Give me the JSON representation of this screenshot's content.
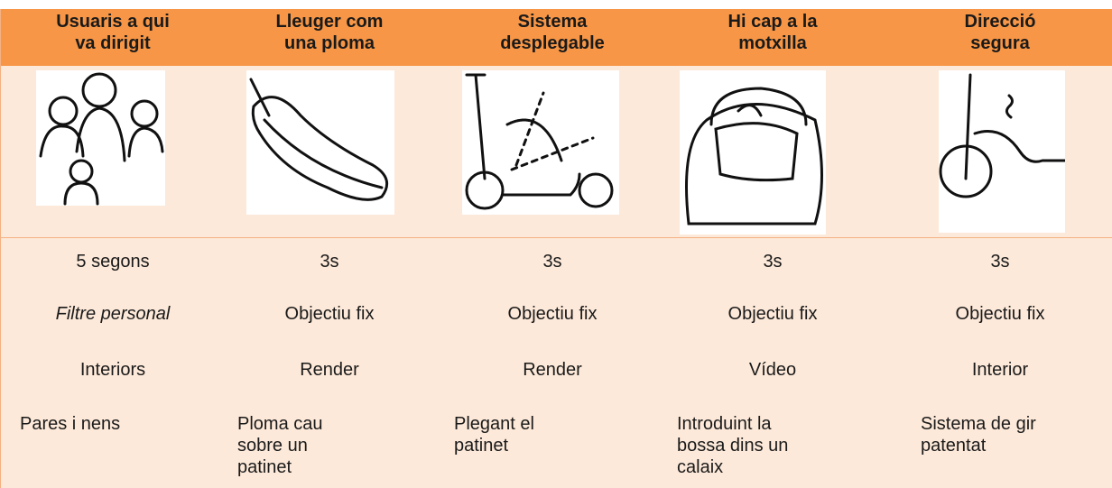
{
  "table": {
    "header": [
      [
        "Usuaris a qui",
        "va dirigit"
      ],
      [
        "Lleuger com",
        "una ploma"
      ],
      [
        "Sistema",
        "desplegable"
      ],
      [
        "Hi cap a la",
        "motxilla"
      ],
      [
        "Direcció",
        "segura"
      ]
    ],
    "rows": [
      [
        "5 segons",
        "3s",
        "3s",
        "3s",
        "3s"
      ],
      [
        "Filtre personal",
        "Objectiu fix",
        "Objectiu fix",
        "Objectiu fix",
        "Objectiu fix"
      ],
      [
        "Interiors",
        "Render",
        "Render",
        "Vídeo",
        "Interior"
      ],
      [
        [
          "Pares i nens"
        ],
        [
          "Ploma cau",
          "sobre un",
          "patinet"
        ],
        [
          "Plegant el",
          "patinet"
        ],
        [
          "Introduint la",
          "bossa dins un",
          "calaix"
        ],
        [
          "Sistema de gir",
          "patentat"
        ]
      ]
    ]
  }
}
